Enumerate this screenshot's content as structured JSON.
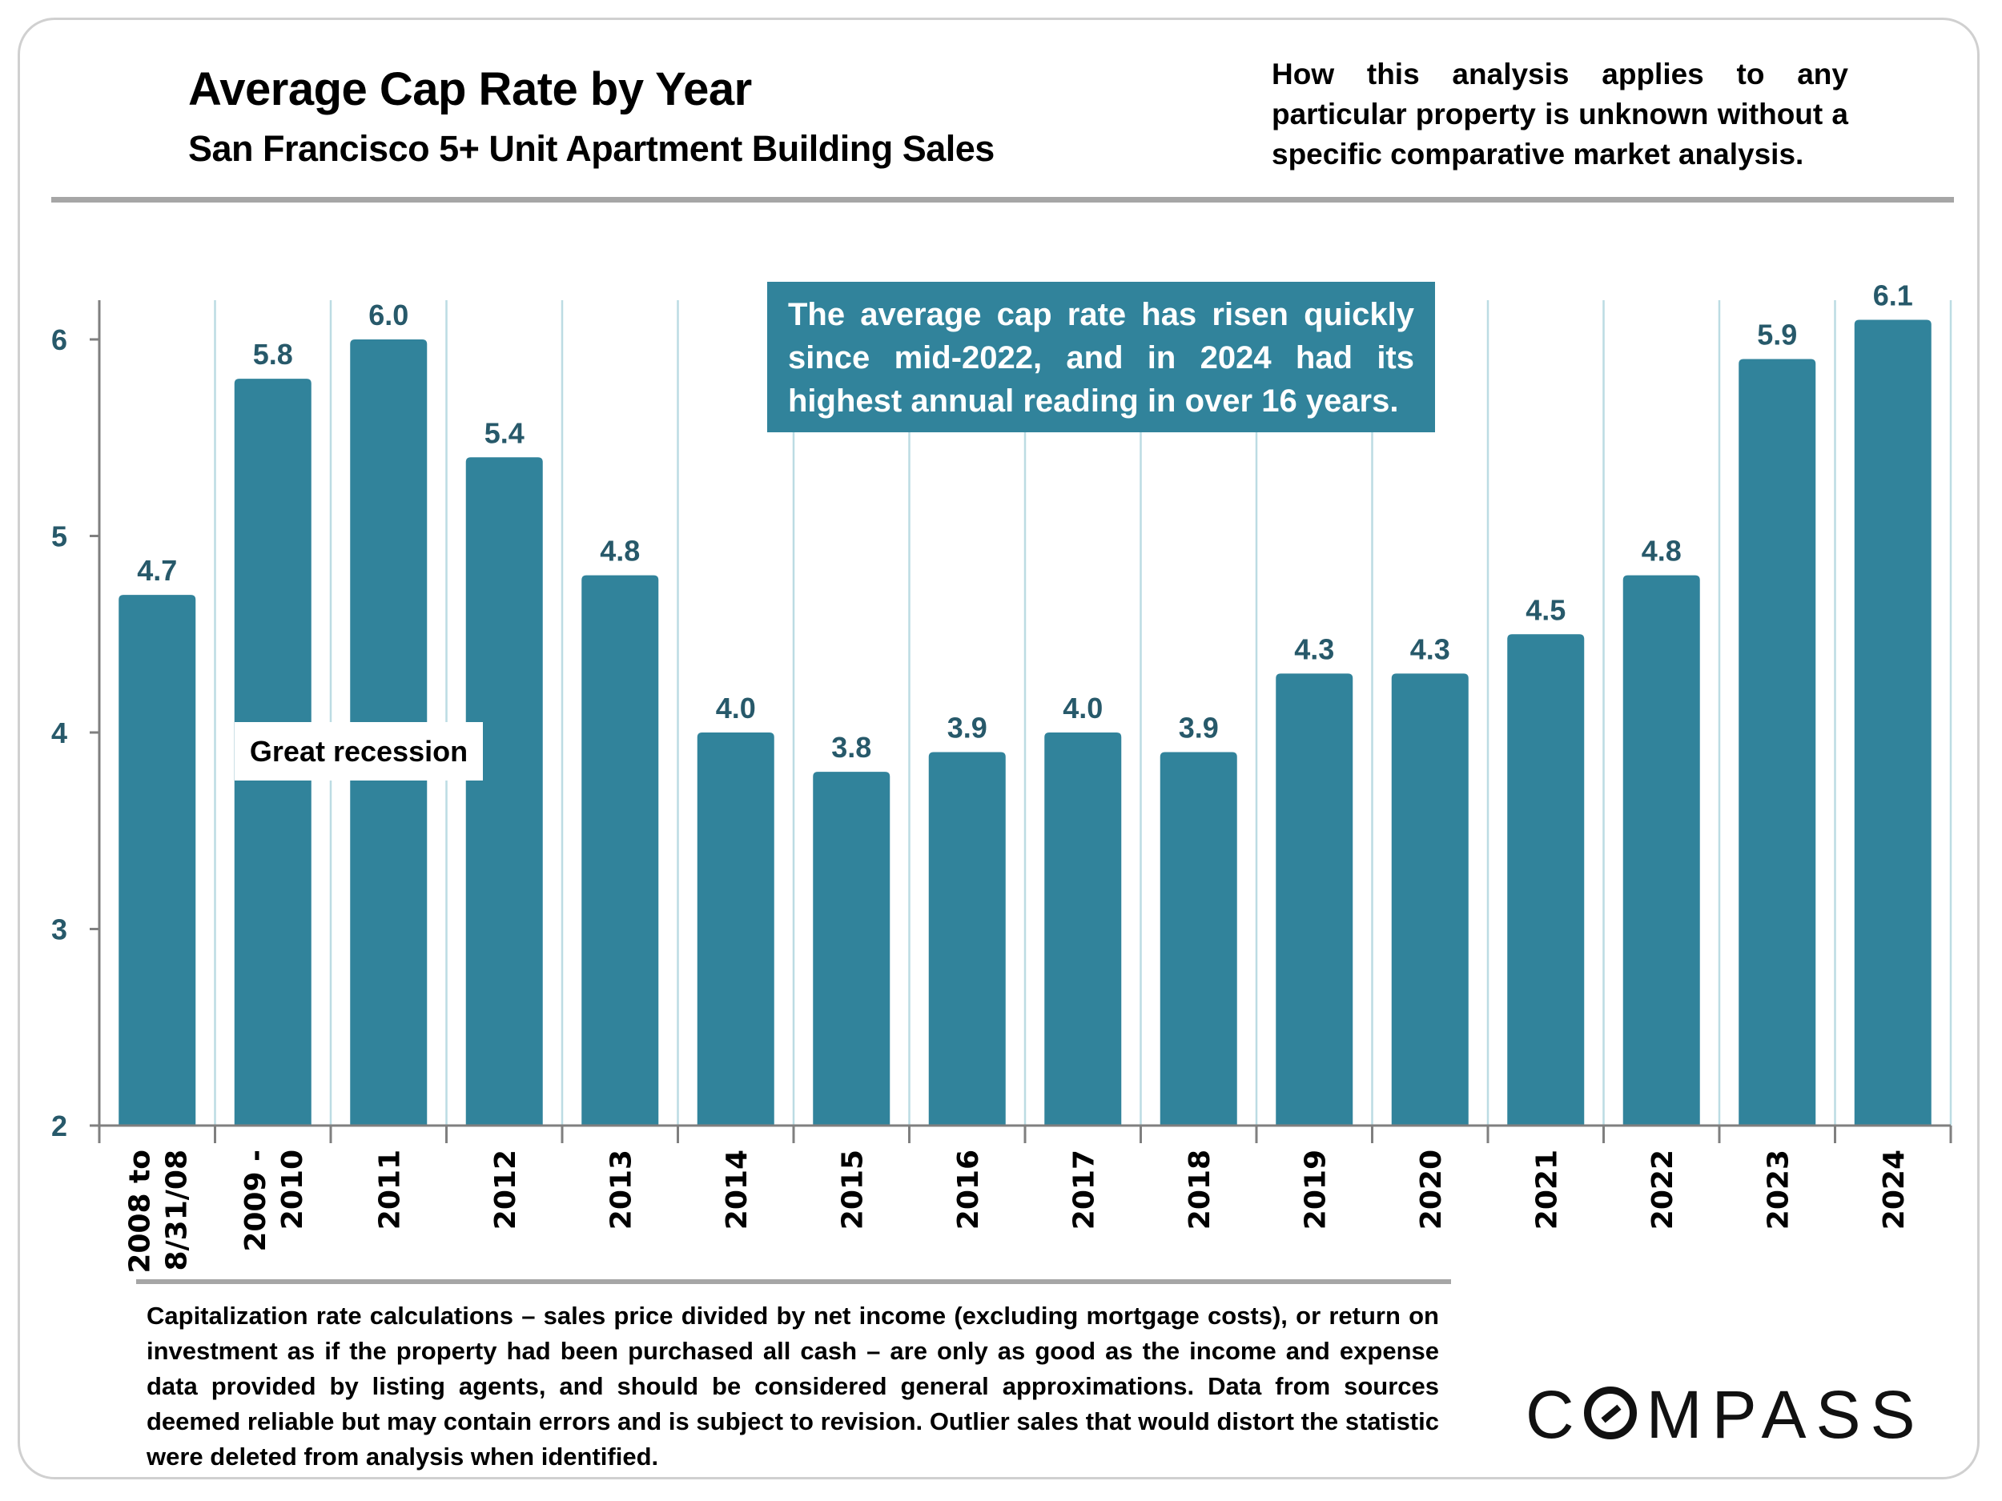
{
  "header": {
    "title": "Average Cap Rate by Year",
    "subtitle": "San Francisco 5+ Unit Apartment Building Sales",
    "note": "How this analysis applies to any particular property is unknown without a specific comparative market analysis."
  },
  "annotations": {
    "callout": "The average cap rate has risen quickly since mid-2022, and in 2024 had its highest annual reading in over 16 years.",
    "recession_label": "Great recession"
  },
  "footnote": "Capitalization rate calculations – sales price divided by net income (excluding mortgage costs), or return on investment as if the property had been purchased all cash – are only as good as the income and expense data provided by listing agents, and should be considered general approximations. Data from sources deemed reliable but may contain errors and is subject to revision. Outlier sales that would distort the statistic were deleted from analysis when identified.",
  "logo": {
    "text_before": "C",
    "text_after": "MPASS",
    "icon": "compass-o-icon"
  },
  "colors": {
    "bar": "#31839b",
    "value_label": "#27596a",
    "tick_label": "#27596a",
    "gridline": "#bcdce3",
    "axis": "#7f7f7f"
  },
  "chart_data": {
    "type": "bar",
    "title": "Average Cap Rate by Year",
    "subtitle": "San Francisco 5+ Unit Apartment Building Sales",
    "xlabel": "",
    "ylabel": "",
    "categories": [
      [
        "2008 to",
        "8/31/08"
      ],
      [
        "2009 -",
        "2010"
      ],
      [
        "2011"
      ],
      [
        "2012"
      ],
      [
        "2013"
      ],
      [
        "2014"
      ],
      [
        "2015"
      ],
      [
        "2016"
      ],
      [
        "2017"
      ],
      [
        "2018"
      ],
      [
        "2019"
      ],
      [
        "2020"
      ],
      [
        "2021"
      ],
      [
        "2022"
      ],
      [
        "2023"
      ],
      [
        "2024"
      ]
    ],
    "values": [
      4.7,
      5.8,
      6.0,
      5.4,
      4.8,
      4.0,
      3.8,
      3.9,
      4.0,
      3.9,
      4.3,
      4.3,
      4.5,
      4.8,
      5.9,
      6.1
    ],
    "value_labels": [
      "4.7",
      "5.8",
      "6.0",
      "5.4",
      "4.8",
      "4.0",
      "3.8",
      "3.9",
      "4.0",
      "3.9",
      "4.3",
      "4.3",
      "4.5",
      "4.8",
      "5.9",
      "6.1"
    ],
    "ylim": [
      2,
      6.2
    ],
    "yticks": [
      2,
      3,
      4,
      5,
      6
    ],
    "grid": "vertical category separators",
    "legend": "none"
  }
}
